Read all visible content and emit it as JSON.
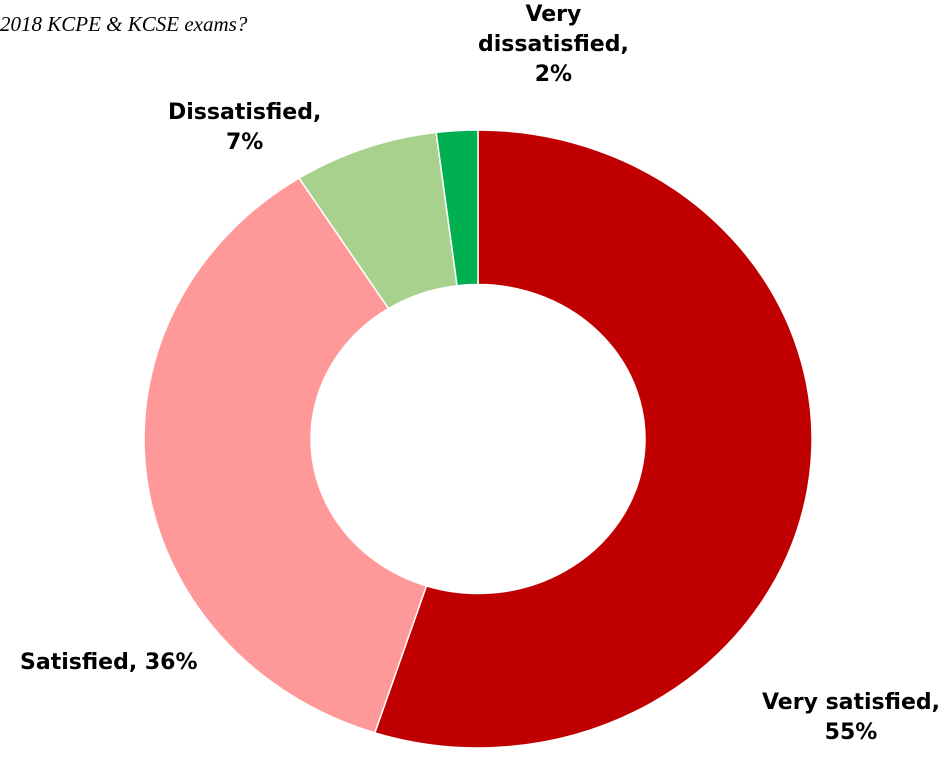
{
  "chart_data": {
    "type": "donut",
    "title": "2018 KCPE & KCSE exams?",
    "values": [
      55,
      36,
      7,
      2
    ],
    "value_labels": [
      "Very satisfied,\n55%",
      "Satisfied, 36%",
      "Dissatisfied,\n7%",
      "Very\ndissatisfied,\n2%"
    ],
    "colors": [
      "#c00000",
      "#ff9999",
      "#a9d18e",
      "#00b050"
    ]
  }
}
